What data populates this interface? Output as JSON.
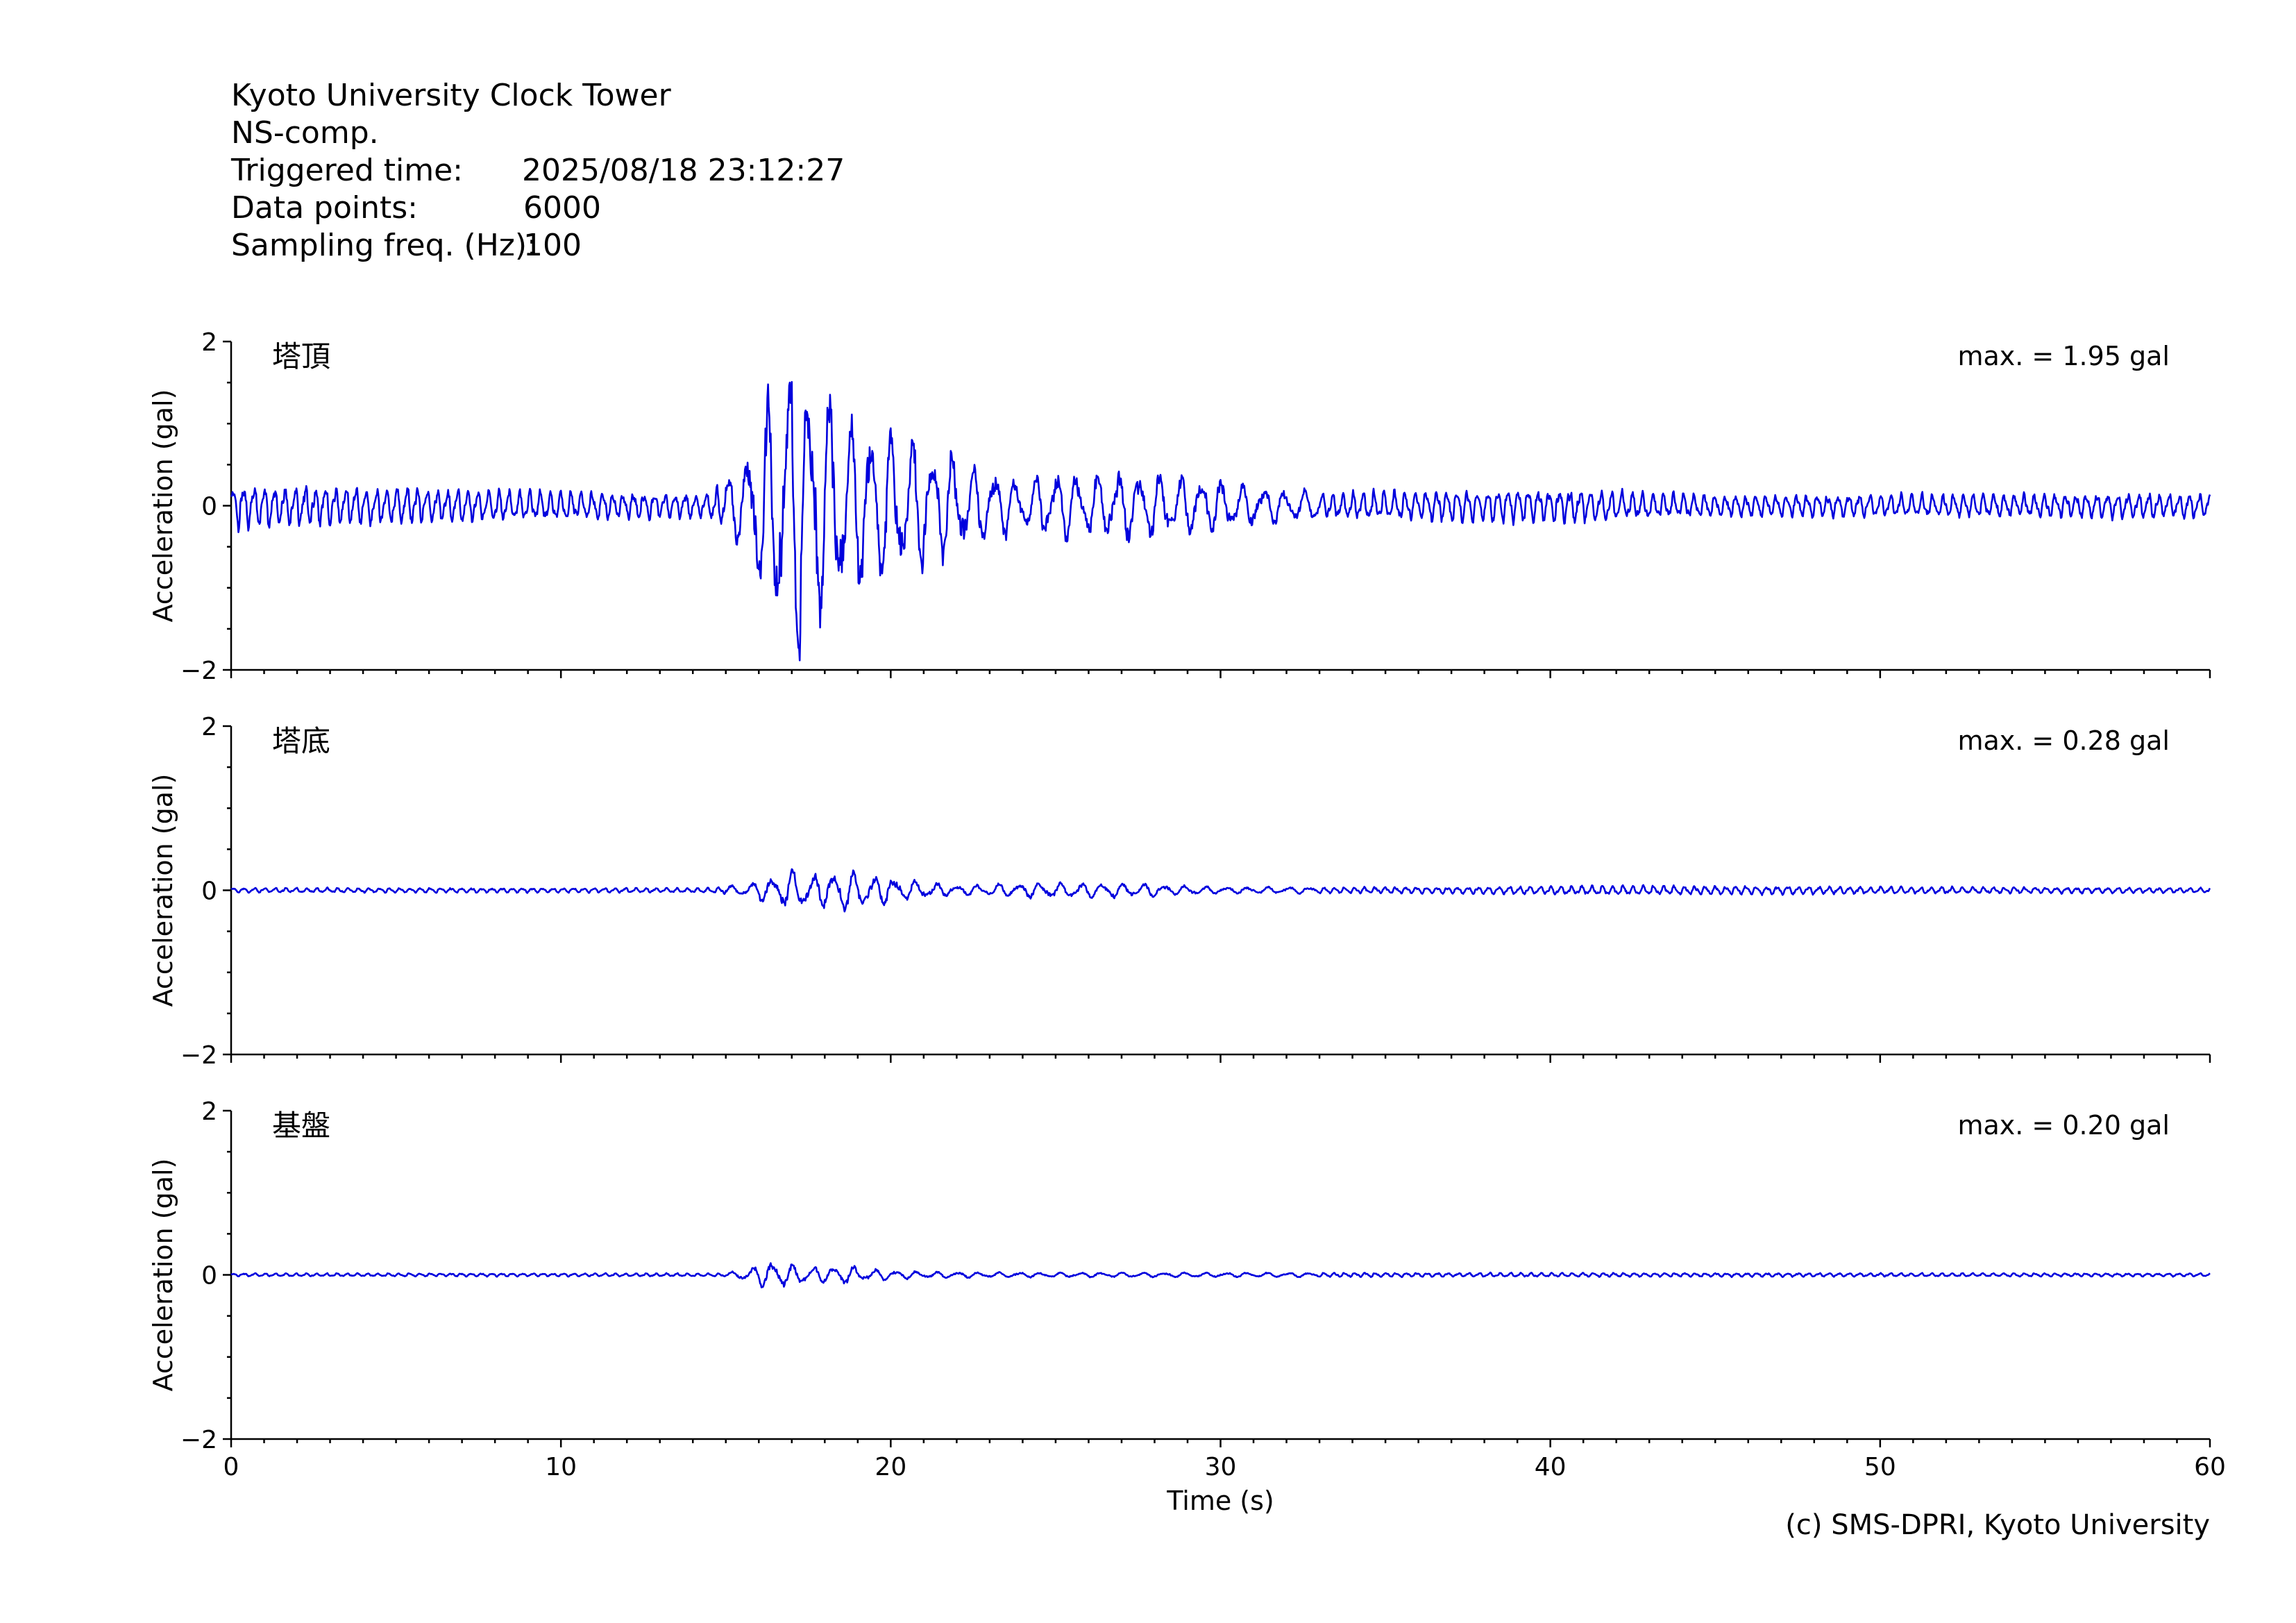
{
  "header": {
    "station": "Kyoto University Clock Tower",
    "component": "NS-comp.",
    "triggered_label": "Triggered time:",
    "triggered_value": "2025/08/18 23:12:27",
    "points_label": "Data points:",
    "points_value": "6000",
    "freq_label": "Sampling freq. (Hz):",
    "freq_value": "100"
  },
  "credit": "(c) SMS-DPRI, Kyoto University",
  "colors": {
    "trace": "#0000dd",
    "axis": "#000000",
    "background": "#ffffff"
  },
  "chart_data": [
    {
      "type": "line",
      "panel_label": "塔頂",
      "max_text": "max. = 1.95 gal",
      "ylabel": "Acceleration (gal)",
      "xlabel": "",
      "xlim": [
        0,
        60
      ],
      "ylim": [
        -2,
        2
      ],
      "yticks": [
        "−2",
        "0",
        "2"
      ],
      "xticks": [
        "",
        "",
        "",
        "",
        "",
        "",
        ""
      ],
      "envelope": {
        "x": [
          0,
          11,
          14.5,
          15.5,
          16.3,
          16.9,
          17.2,
          17.6,
          18.2,
          19,
          20,
          21,
          22,
          23,
          24,
          25,
          26,
          27.5,
          28.5,
          30,
          31,
          33,
          40,
          45,
          60
        ],
        "amp": [
          0.28,
          0.18,
          0.16,
          0.55,
          1.3,
          1.82,
          1.95,
          1.75,
          1.35,
          1.1,
          0.95,
          0.8,
          0.6,
          0.45,
          0.3,
          0.45,
          0.4,
          0.45,
          0.4,
          0.32,
          0.25,
          0.17,
          0.22,
          0.14,
          0.16
        ]
      },
      "seed": 11
    },
    {
      "type": "line",
      "panel_label": "塔底",
      "max_text": "max. = 0.28 gal",
      "ylabel": "Acceleration (gal)",
      "xlabel": "",
      "xlim": [
        0,
        60
      ],
      "ylim": [
        -2,
        2
      ],
      "yticks": [
        "−2",
        "0",
        "2"
      ],
      "xticks": [
        "",
        "",
        "",
        "",
        "",
        "",
        ""
      ],
      "envelope": {
        "x": [
          0,
          14.5,
          15.5,
          16.5,
          17,
          17.8,
          18.4,
          19.5,
          20.5,
          22,
          24,
          26,
          28,
          30,
          36,
          42,
          60
        ],
        "amp": [
          0.03,
          0.03,
          0.07,
          0.17,
          0.24,
          0.2,
          0.28,
          0.2,
          0.13,
          0.06,
          0.09,
          0.1,
          0.08,
          0.04,
          0.04,
          0.06,
          0.03
        ]
      },
      "seed": 23
    },
    {
      "type": "line",
      "panel_label": "基盤",
      "max_text": "max. = 0.20 gal",
      "ylabel": "Acceleration (gal)",
      "xlabel": "Time (s)",
      "xlim": [
        0,
        60
      ],
      "ylim": [
        -2,
        2
      ],
      "yticks": [
        "−2",
        "0",
        "2"
      ],
      "xticks": [
        "0",
        "10",
        "20",
        "30",
        "40",
        "50",
        "60"
      ],
      "envelope": {
        "x": [
          0,
          15,
          15.8,
          16.3,
          16.8,
          17.6,
          18.5,
          19.5,
          21,
          24,
          60
        ],
        "amp": [
          0.02,
          0.02,
          0.1,
          0.2,
          0.14,
          0.1,
          0.12,
          0.07,
          0.04,
          0.03,
          0.02
        ]
      },
      "seed": 37
    }
  ]
}
